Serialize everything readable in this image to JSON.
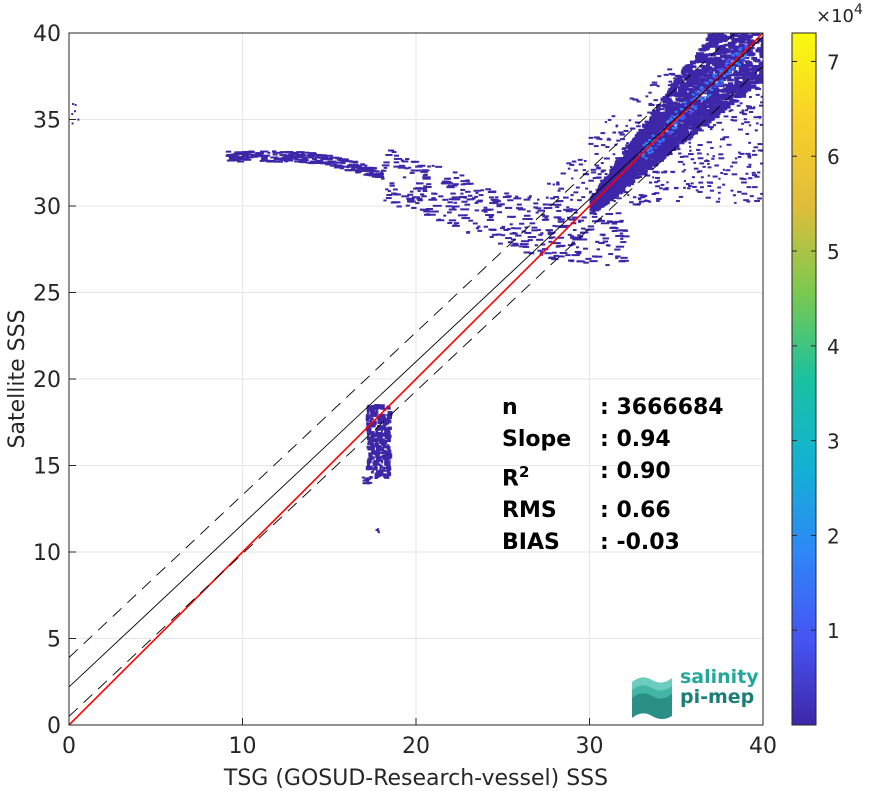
{
  "chart_data": {
    "type": "heatmap",
    "xlabel": "TSG (GOSUD-Research-vessel) SSS",
    "ylabel": "Satellite SSS",
    "xlim": [
      0,
      40
    ],
    "ylim": [
      0,
      40
    ],
    "xticks": [
      "0",
      "10",
      "20",
      "30",
      "40"
    ],
    "yticks": [
      "0",
      "5",
      "10",
      "15",
      "20",
      "25",
      "30",
      "35",
      "40"
    ],
    "grid": true,
    "colorbar": {
      "range": [
        0,
        73000
      ],
      "ticks": [
        "1",
        "2",
        "3",
        "4",
        "5",
        "6",
        "7"
      ],
      "exponent_label": "×10",
      "exponent_power": "4",
      "colormap": [
        "#3e26a8",
        "#4655f4",
        "#2e87f7",
        "#12b2d4",
        "#1ac1a0",
        "#7bc94f",
        "#e0bd3a",
        "#f9d029",
        "#f9fb0e"
      ]
    },
    "lines": [
      {
        "name": "one-to-one",
        "color": "#ff0000",
        "points": [
          [
            0,
            0
          ],
          [
            40,
            40
          ]
        ]
      },
      {
        "name": "regression",
        "color": "#000000",
        "points": [
          [
            0,
            2.2
          ],
          [
            40,
            39.8
          ]
        ]
      },
      {
        "name": "regression-upper",
        "color": "#000000",
        "dashed": true,
        "points": [
          [
            0,
            3.9
          ],
          [
            40,
            41.5
          ]
        ]
      },
      {
        "name": "regression-lower",
        "color": "#000000",
        "dashed": true,
        "points": [
          [
            0,
            0.5
          ],
          [
            40,
            38.1
          ]
        ]
      }
    ],
    "density_regions": [
      {
        "x": [
          30,
          40
        ],
        "y": [
          29.5,
          40
        ],
        "level": "high",
        "note": "main cloud along diagonal, peak near (35.5, 35.3)"
      },
      {
        "x": [
          9,
          32
        ],
        "y": [
          26.5,
          33
        ],
        "level": "low",
        "note": "arc of scattered points"
      },
      {
        "x": [
          17,
          18.5
        ],
        "y": [
          13.8,
          18.5
        ],
        "level": "low",
        "note": "cluster near x=18"
      },
      {
        "x": [
          0,
          0.5
        ],
        "y": [
          34.5,
          36
        ],
        "level": "low"
      },
      {
        "x": [
          17.5,
          18
        ],
        "y": [
          11,
          11.5
        ],
        "level": "low"
      }
    ]
  },
  "stats": [
    {
      "label": "n",
      "value": ": 3666684"
    },
    {
      "label": "Slope",
      "value": ": 0.94"
    },
    {
      "label": "R",
      "sup": "2",
      "value": ": 0.90"
    },
    {
      "label": "RMS",
      "value": ": 0.66"
    },
    {
      "label": "BIAS",
      "value": ": -0.03"
    }
  ],
  "logo": {
    "line1": "salinity",
    "line2": "pi-mep"
  }
}
